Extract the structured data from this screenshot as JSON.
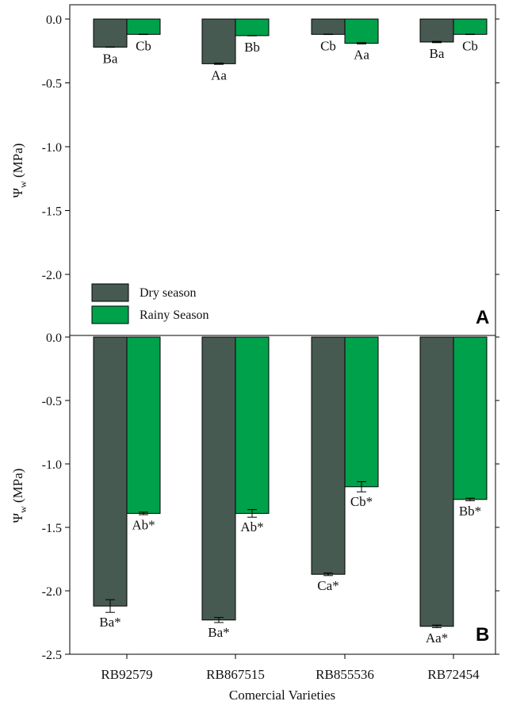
{
  "chart_data": [
    {
      "panel": "A",
      "type": "bar",
      "ylabel": "Ψw (MPa)",
      "xlabel": "",
      "ylim": [
        -2.5,
        0.0
      ],
      "yticks": [
        "0.0",
        "-0.5",
        "-1.0",
        "-1.5",
        "-2.0"
      ],
      "categories": [
        "RB92579",
        "RB867515",
        "RB855536",
        "RB72454"
      ],
      "series": [
        {
          "name": "Dry season",
          "color": "#465a51",
          "values": [
            -0.22,
            -0.35,
            -0.12,
            -0.18
          ],
          "errors": [
            0.003,
            0.005,
            0.003,
            0.005
          ],
          "labels": [
            "Ba",
            "Aa",
            "Cb",
            "Ba"
          ]
        },
        {
          "name": "Rainy Season",
          "color": "#00a14b",
          "values": [
            -0.12,
            -0.13,
            -0.19,
            -0.12
          ],
          "errors": [
            0.003,
            0.003,
            0.005,
            0.003
          ],
          "labels": [
            "Cb",
            "Bb",
            "Aa",
            "Cb"
          ]
        }
      ],
      "legend_position": "bottom-left"
    },
    {
      "panel": "B",
      "type": "bar",
      "ylabel": "Ψw (MPa)",
      "xlabel": "Comercial Varieties",
      "ylim": [
        -2.5,
        0.0
      ],
      "yticks": [
        "0.0",
        "-0.5",
        "-1.0",
        "-1.5",
        "-2.0",
        "-2.5"
      ],
      "categories": [
        "RB92579",
        "RB867515",
        "RB855536",
        "RB72454"
      ],
      "series": [
        {
          "name": "Dry season",
          "color": "#465a51",
          "values": [
            -2.12,
            -2.23,
            -1.87,
            -2.28
          ],
          "errors": [
            0.05,
            0.02,
            0.01,
            0.01
          ],
          "labels": [
            "Ba*",
            "Ba*",
            "Ca*",
            "Aa*"
          ]
        },
        {
          "name": "Rainy Season",
          "color": "#00a14b",
          "values": [
            -1.39,
            -1.39,
            -1.18,
            -1.28
          ],
          "errors": [
            0.01,
            0.03,
            0.04,
            0.01
          ],
          "labels": [
            "Ab*",
            "Ab*",
            "Cb*",
            "Bb*"
          ]
        }
      ]
    }
  ]
}
